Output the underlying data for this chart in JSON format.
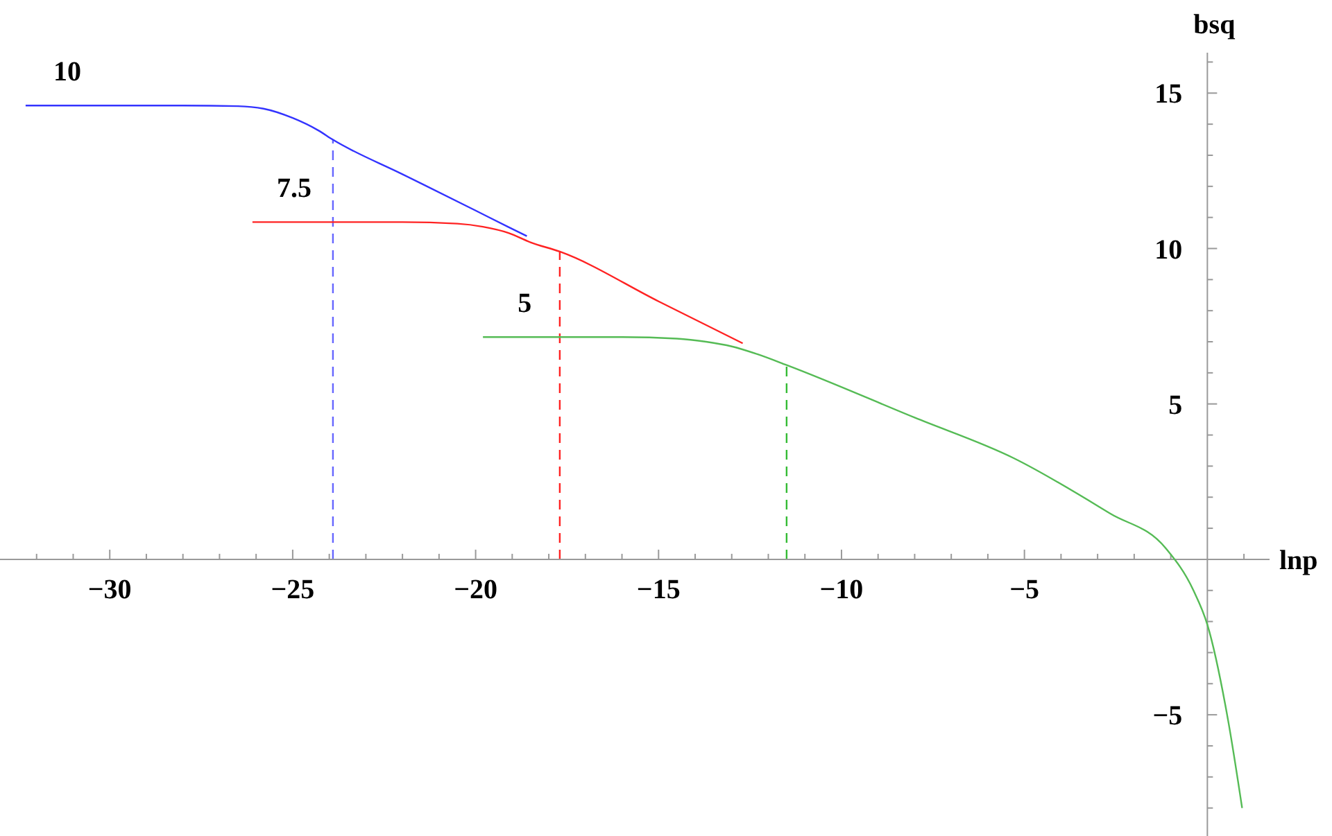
{
  "chart_data": {
    "type": "line",
    "xlabel": "lnp",
    "ylabel": "bsq",
    "xlim": [
      -33,
      1.7
    ],
    "ylim": [
      -8.9,
      16.3
    ],
    "xticks": [
      {
        "value": -32,
        "label": null
      },
      {
        "value": -31,
        "label": null
      },
      -30,
      {
        "value": -29,
        "label": null
      },
      {
        "value": -28,
        "label": null
      },
      {
        "value": -27,
        "label": null
      },
      {
        "value": -26,
        "label": null
      },
      -25,
      {
        "value": -24,
        "label": null
      },
      {
        "value": -23,
        "label": null
      },
      {
        "value": -22,
        "label": null
      },
      {
        "value": -21,
        "label": null
      },
      -20,
      {
        "value": -19,
        "label": null
      },
      {
        "value": -18,
        "label": null
      },
      {
        "value": -17,
        "label": null
      },
      {
        "value": -16,
        "label": null
      },
      -15,
      {
        "value": -14,
        "label": null
      },
      {
        "value": -13,
        "label": null
      },
      {
        "value": -12,
        "label": null
      },
      {
        "value": -11,
        "label": null
      },
      -10,
      {
        "value": -9,
        "label": null
      },
      {
        "value": -8,
        "label": null
      },
      {
        "value": -7,
        "label": null
      },
      {
        "value": -6,
        "label": null
      },
      -5,
      {
        "value": -4,
        "label": null
      },
      {
        "value": -3,
        "label": null
      },
      {
        "value": -2,
        "label": null
      },
      {
        "value": -1,
        "label": null
      },
      {
        "value": 1,
        "label": null
      }
    ],
    "yticks": [
      {
        "value": -8,
        "label": null
      },
      {
        "value": -7,
        "label": null
      },
      {
        "value": -6,
        "label": null
      },
      -5,
      {
        "value": -4,
        "label": null
      },
      {
        "value": -3,
        "label": null
      },
      {
        "value": -2,
        "label": null
      },
      {
        "value": -1,
        "label": null
      },
      {
        "value": 1,
        "label": null
      },
      {
        "value": 2,
        "label": null
      },
      {
        "value": 3,
        "label": null
      },
      {
        "value": 4,
        "label": null
      },
      5,
      {
        "value": 6,
        "label": null
      },
      {
        "value": 7,
        "label": null
      },
      {
        "value": 8,
        "label": null
      },
      {
        "value": 9,
        "label": null
      },
      10,
      {
        "value": 11,
        "label": null
      },
      {
        "value": 12,
        "label": null
      },
      {
        "value": 13,
        "label": null
      },
      {
        "value": 14,
        "label": null
      },
      15,
      {
        "value": 16,
        "label": null
      }
    ],
    "grid": false,
    "marker": "none",
    "line_style": "solid",
    "series": [
      {
        "name": "10",
        "color": "#3333ff",
        "x": [
          -32.3,
          -28,
          -26.5,
          -25.8,
          -25,
          -24.3,
          -23.9,
          -22,
          -20,
          -19.1,
          -18.6
        ],
        "values": [
          14.6,
          14.6,
          14.58,
          14.5,
          14.2,
          13.8,
          13.5,
          12.39,
          11.22,
          10.69,
          10.4
        ]
      },
      {
        "name": "7.5",
        "color": "#ff2222",
        "x": [
          -26.1,
          -22,
          -20.5,
          -19.8,
          -19.1,
          -18.5,
          -17.7,
          -15,
          -12.7
        ],
        "values": [
          10.85,
          10.85,
          10.8,
          10.7,
          10.5,
          10.2,
          9.9,
          8.3,
          6.95
        ]
      },
      {
        "name": "5",
        "color": "#55bb55",
        "x": [
          -19.8,
          -16,
          -14.5,
          -13.7,
          -13,
          -12.3,
          -11.5,
          -8,
          -5.3,
          -2.65,
          -1.14,
          -0.38,
          0,
          0.57,
          0.95
        ],
        "values": [
          7.15,
          7.15,
          7.1,
          7.0,
          6.85,
          6.6,
          6.25,
          4.56,
          3.26,
          1.47,
          0.36,
          -1.0,
          -2.1,
          -5.2,
          -8.0
        ]
      }
    ],
    "ref_lines": [
      {
        "axis": "x",
        "value": -23.9,
        "color": "#6666ff",
        "line_style": "dashed"
      },
      {
        "axis": "x",
        "value": -17.7,
        "color": "#ff2222",
        "line_style": "dashed"
      },
      {
        "axis": "x",
        "value": -11.5,
        "color": "#33bb33",
        "line_style": "dashed"
      }
    ]
  }
}
